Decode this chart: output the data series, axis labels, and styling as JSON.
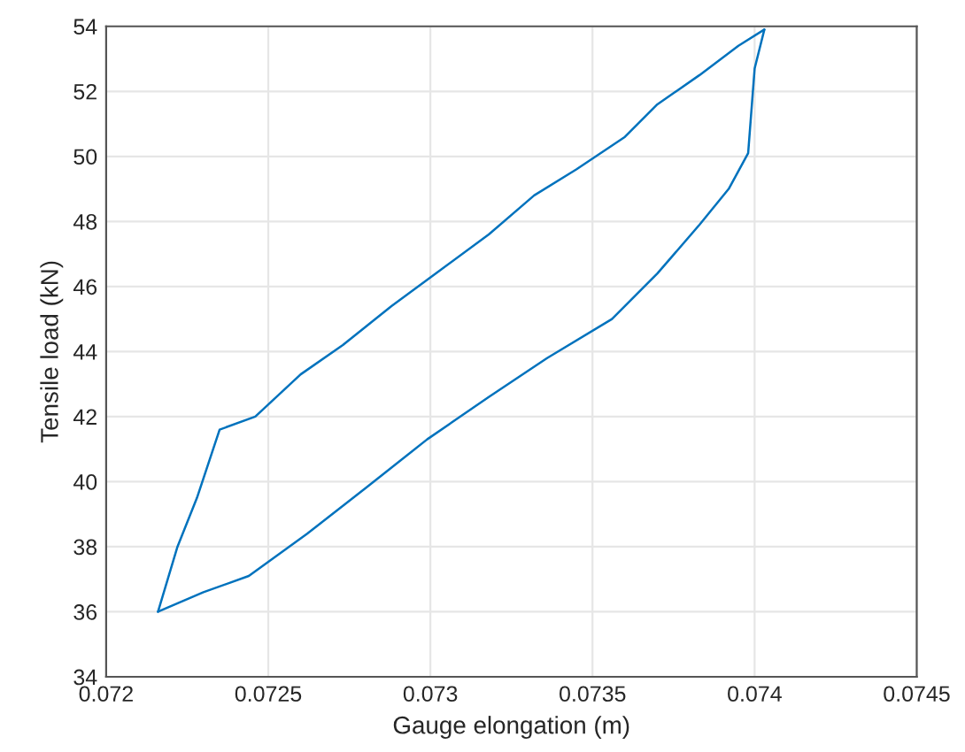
{
  "chart_data": {
    "type": "line",
    "xlabel": "Gauge elongation (m)",
    "ylabel": "Tensile load (kN)",
    "series": [
      {
        "color": "#0072bd",
        "x": [
          0.07216,
          0.0723,
          0.07244,
          0.07262,
          0.0728,
          0.07299,
          0.07318,
          0.07336,
          0.07356,
          0.0737,
          0.07383,
          0.07392,
          0.07398,
          0.074,
          0.07403
        ],
        "values": [
          36.0,
          36.6,
          37.1,
          38.4,
          39.8,
          41.3,
          42.6,
          43.8,
          45.0,
          46.4,
          47.9,
          49.0,
          50.1,
          52.7,
          53.9
        ]
      },
      {
        "color": "#0072bd",
        "x": [
          0.07216,
          0.07222,
          0.07228,
          0.07235,
          0.07246,
          0.0726,
          0.07273,
          0.07288,
          0.07303,
          0.07318,
          0.07332,
          0.07345,
          0.0736,
          0.0737,
          0.07383,
          0.07395,
          0.07403
        ],
        "values": [
          36.0,
          38.0,
          39.5,
          41.6,
          42.0,
          43.3,
          44.2,
          45.4,
          46.5,
          47.6,
          48.8,
          49.6,
          50.6,
          51.6,
          52.5,
          53.4,
          53.9
        ]
      }
    ],
    "xlim": [
      0.072,
      0.0745
    ],
    "xticks": [
      0.072,
      0.0725,
      0.073,
      0.0735,
      0.074,
      0.0745
    ],
    "ylim": [
      34,
      54
    ],
    "yticks": [
      34,
      36,
      38,
      40,
      42,
      44,
      46,
      48,
      50,
      52,
      54
    ],
    "grid": true,
    "line_style": "solid",
    "marker": "none"
  }
}
